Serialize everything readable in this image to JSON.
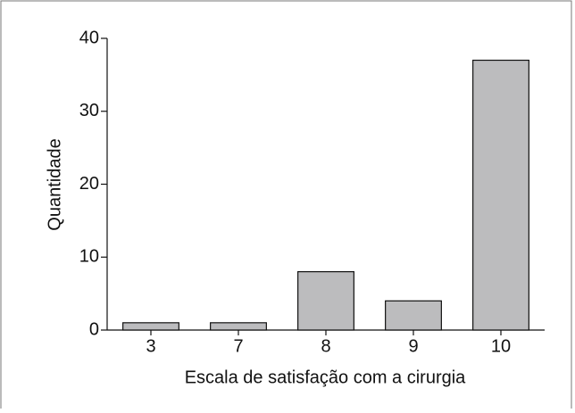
{
  "chart_data": {
    "type": "bar",
    "categories": [
      "3",
      "7",
      "8",
      "9",
      "10"
    ],
    "values": [
      1,
      1,
      8,
      4,
      37
    ],
    "color": "#bcbcbe",
    "xlabel": "Escala de satisfação com a cirurgia",
    "ylabel": "Quantidade",
    "ylim": [
      0,
      40
    ],
    "yticks": [
      0,
      10,
      20,
      30,
      40
    ],
    "grid": false
  }
}
